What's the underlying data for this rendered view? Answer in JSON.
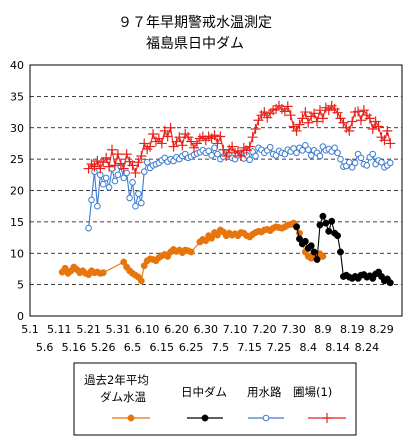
{
  "chart_data": {
    "type": "line",
    "title": "９７年早期警戒水温測定",
    "subtitle": "福島県日中ダム",
    "xlabel": "",
    "ylabel": "",
    "ylim": [
      0,
      40
    ],
    "yticks": [
      "0",
      "5",
      "10",
      "15",
      "20",
      "25",
      "30",
      "35",
      "40"
    ],
    "xlim": [
      "5/1",
      "9/5"
    ],
    "xtick_labels_row1": [
      "5.1",
      "5.11",
      "5.21",
      "5.31",
      "6.10",
      "6.20",
      "6.30",
      "7.10",
      "7.20",
      "7.30",
      "8.9",
      "8.19",
      "8.29"
    ],
    "xtick_labels_row2": [
      "5.6",
      "5.16",
      "5.26",
      "6.5",
      "6.15",
      "6.25",
      "7.5",
      "7.15",
      "7.25",
      "8.4",
      "8.14",
      "8.24"
    ],
    "grid": "horizontal-dashed",
    "legend_position": "bottom",
    "series": [
      {
        "name": "過去2年平均ダム水温",
        "color": "#e8750c",
        "marker": "filled-circle",
        "x": [
          "5/12",
          "5/13",
          "5/14",
          "5/15",
          "5/16",
          "5/17",
          "5/18",
          "5/19",
          "5/20",
          "5/21",
          "5/22",
          "5/23",
          "5/24",
          "5/25",
          "5/26",
          "6/2",
          "6/3",
          "6/4",
          "6/5",
          "6/6",
          "6/7",
          "6/8",
          "6/9",
          "6/10",
          "6/11",
          "6/12",
          "6/13",
          "6/14",
          "6/15",
          "6/16",
          "6/17",
          "6/18",
          "6/19",
          "6/20",
          "6/21",
          "6/22",
          "6/23",
          "6/24",
          "6/25",
          "6/28",
          "6/29",
          "6/30",
          "7/1",
          "7/2",
          "7/3",
          "7/4",
          "7/5",
          "7/6",
          "7/7",
          "7/8",
          "7/9",
          "7/10",
          "7/11",
          "7/12",
          "7/13",
          "7/14",
          "7/15",
          "7/16",
          "7/17",
          "7/18",
          "7/19",
          "7/20",
          "7/21",
          "7/22",
          "7/23",
          "7/24",
          "7/25",
          "7/26",
          "7/27",
          "7/28",
          "7/29",
          "7/30",
          "7/31",
          "8/1",
          "8/2",
          "8/3",
          "8/4",
          "8/5",
          "8/6",
          "8/7",
          "8/8",
          "8/9"
        ],
        "values": [
          7.0,
          7.6,
          6.8,
          7.2,
          7.8,
          7.4,
          6.9,
          7.2,
          6.8,
          6.6,
          7.2,
          6.9,
          7.0,
          6.8,
          6.9,
          8.6,
          7.8,
          7.2,
          6.8,
          6.5,
          6.2,
          5.6,
          8.0,
          8.8,
          9.1,
          9.0,
          8.8,
          9.3,
          9.6,
          9.8,
          9.5,
          10.2,
          10.6,
          10.3,
          10.5,
          10.1,
          10.5,
          10.4,
          10.2,
          11.8,
          12.2,
          12.0,
          12.8,
          12.4,
          13.3,
          12.9,
          13.7,
          13.4,
          12.8,
          13.2,
          12.9,
          13.1,
          12.8,
          13.3,
          13.2,
          12.8,
          12.6,
          13.0,
          13.3,
          13.5,
          13.4,
          13.7,
          13.8,
          13.6,
          14.0,
          14.2,
          14.1,
          14.0,
          14.2,
          14.5,
          14.6,
          14.8,
          14.3,
          13.2,
          11.5,
          10.2,
          9.5,
          9.2,
          9.8,
          9.5,
          9.9,
          9.5
        ]
      },
      {
        "name": "日中ダム",
        "color": "#000000",
        "marker": "filled-circle",
        "x": [
          "7/31",
          "8/1",
          "8/2",
          "8/3",
          "8/4",
          "8/5",
          "8/6",
          "8/7",
          "8/8",
          "8/9",
          "8/10",
          "8/11",
          "8/12",
          "8/13",
          "8/14",
          "8/15",
          "8/16",
          "8/17",
          "8/18",
          "8/19",
          "8/20",
          "8/21",
          "8/22",
          "8/23",
          "8/24",
          "8/25",
          "8/26",
          "8/27",
          "8/28",
          "8/29",
          "8/30",
          "8/31",
          "9/1"
        ],
        "values": [
          14.2,
          12.3,
          11.5,
          11.9,
          10.8,
          11.2,
          10.2,
          9.0,
          14.5,
          15.9,
          14.8,
          13.5,
          15.1,
          13.2,
          12.8,
          10.2,
          6.3,
          6.5,
          6.2,
          6.0,
          6.3,
          6.0,
          6.5,
          6.6,
          6.2,
          6.4,
          6.0,
          6.7,
          7.0,
          6.3,
          5.6,
          5.9,
          5.3
        ]
      },
      {
        "name": "用水路",
        "color": "#3c7cd0",
        "marker": "open-circle",
        "x": [
          "5/21",
          "5/22",
          "5/23",
          "5/24",
          "5/25",
          "5/26",
          "5/27",
          "5/28",
          "5/29",
          "5/30",
          "5/31",
          "6/1",
          "6/2",
          "6/3",
          "6/4",
          "6/5",
          "6/6",
          "6/7",
          "6/8",
          "6/9",
          "6/10",
          "6/11",
          "6/12",
          "6/13",
          "6/14",
          "6/15",
          "6/16",
          "6/17",
          "6/18",
          "6/19",
          "6/20",
          "6/21",
          "6/22",
          "6/23",
          "6/24",
          "6/25",
          "6/26",
          "6/27",
          "6/28",
          "6/29",
          "6/30",
          "7/1",
          "7/2",
          "7/3",
          "7/4",
          "7/5",
          "7/6",
          "7/7",
          "7/8",
          "7/9",
          "7/10",
          "7/11",
          "7/12",
          "7/13",
          "7/14",
          "7/15",
          "7/16",
          "7/17",
          "7/18",
          "7/19",
          "7/20",
          "7/21",
          "7/22",
          "7/23",
          "7/24",
          "7/25",
          "7/26",
          "7/27",
          "7/28",
          "7/29",
          "7/30",
          "7/31",
          "8/1",
          "8/2",
          "8/3",
          "8/4",
          "8/5",
          "8/6",
          "8/7",
          "8/8",
          "8/9",
          "8/10",
          "8/11",
          "8/12",
          "8/13",
          "8/14",
          "8/15",
          "8/16",
          "8/17",
          "8/18",
          "8/19",
          "8/20",
          "8/21",
          "8/22",
          "8/23",
          "8/24",
          "8/25",
          "8/26",
          "8/27",
          "8/28",
          "8/29",
          "8/30",
          "8/31",
          "9/1"
        ],
        "values": [
          14.0,
          18.5,
          23.0,
          17.5,
          22.5,
          21.0,
          22.0,
          20.5,
          23.5,
          21.5,
          22.5,
          23.8,
          22.0,
          22.8,
          18.8,
          21.3,
          17.5,
          19.5,
          18.0,
          23.0,
          24.5,
          23.6,
          24.0,
          24.2,
          24.4,
          24.8,
          25.2,
          24.6,
          25.0,
          24.7,
          25.3,
          25.0,
          25.5,
          25.8,
          25.2,
          25.4,
          25.7,
          25.9,
          26.1,
          26.4,
          26.0,
          26.3,
          25.6,
          26.8,
          25.8,
          25.0,
          25.4,
          26.0,
          25.7,
          25.2,
          25.0,
          25.6,
          26.0,
          25.1,
          25.6,
          24.9,
          26.2,
          25.5,
          26.8,
          26.5,
          26.0,
          26.4,
          26.9,
          25.8,
          25.6,
          26.3,
          26.0,
          25.8,
          26.5,
          26.2,
          26.7,
          26.0,
          26.8,
          26.4,
          27.2,
          26.5,
          25.6,
          26.4,
          26.0,
          25.5,
          27.0,
          26.4,
          26.6,
          26.2,
          26.8,
          26.0,
          25.0,
          23.8,
          23.9,
          24.5,
          23.7,
          24.4,
          25.8,
          25.2,
          24.2,
          24.0,
          25.3,
          25.8,
          24.2,
          24.8,
          24.5,
          23.7,
          24.0,
          24.4
        ]
      },
      {
        "name": "圃場(1)",
        "color": "#e8231c",
        "marker": "plus",
        "x": [
          "5/21",
          "5/22",
          "5/23",
          "5/24",
          "5/25",
          "5/26",
          "5/27",
          "5/28",
          "5/29",
          "5/30",
          "5/31",
          "6/1",
          "6/2",
          "6/3",
          "6/4",
          "6/5",
          "6/6",
          "6/7",
          "6/8",
          "6/9",
          "6/10",
          "6/11",
          "6/12",
          "6/13",
          "6/14",
          "6/15",
          "6/16",
          "6/17",
          "6/18",
          "6/19",
          "6/20",
          "6/21",
          "6/22",
          "6/23",
          "6/24",
          "6/25",
          "6/26",
          "6/27",
          "6/28",
          "6/29",
          "6/30",
          "7/1",
          "7/2",
          "7/3",
          "7/4",
          "7/5",
          "7/6",
          "7/7",
          "7/8",
          "7/9",
          "7/10",
          "7/11",
          "7/12",
          "7/13",
          "7/14",
          "7/15",
          "7/16",
          "7/17",
          "7/18",
          "7/19",
          "7/20",
          "7/21",
          "7/22",
          "7/23",
          "7/24",
          "7/25",
          "7/26",
          "7/27",
          "7/28",
          "7/29",
          "7/30",
          "7/31",
          "8/1",
          "8/2",
          "8/3",
          "8/4",
          "8/5",
          "8/6",
          "8/7",
          "8/8",
          "8/9",
          "8/10",
          "8/11",
          "8/12",
          "8/13",
          "8/14",
          "8/15",
          "8/16",
          "8/17",
          "8/18",
          "8/19",
          "8/20",
          "8/21",
          "8/22",
          "8/23",
          "8/24",
          "8/25",
          "8/26",
          "8/27",
          "8/28",
          "8/29",
          "8/30",
          "8/31",
          "9/1"
        ],
        "values": [
          23.5,
          24.2,
          23.8,
          24.7,
          23.5,
          24.5,
          25.2,
          23.8,
          26.5,
          24.0,
          25.8,
          24.3,
          23.5,
          25.8,
          24.6,
          24.0,
          22.8,
          24.5,
          25.5,
          27.5,
          26.6,
          27.0,
          29.0,
          27.8,
          28.3,
          27.5,
          29.5,
          28.6,
          30.0,
          27.0,
          27.8,
          28.5,
          27.2,
          29.0,
          28.5,
          27.8,
          26.8,
          27.5,
          28.3,
          28.6,
          28.0,
          28.6,
          28.3,
          28.8,
          27.5,
          28.6,
          26.5,
          25.5,
          26.5,
          27.0,
          26.0,
          26.3,
          25.5,
          26.8,
          26.4,
          27.0,
          28.5,
          29.8,
          31.2,
          32.0,
          32.5,
          31.6,
          32.3,
          32.8,
          33.0,
          33.5,
          33.0,
          32.6,
          33.4,
          32.0,
          30.2,
          29.5,
          30.5,
          31.5,
          32.5,
          30.8,
          31.8,
          32.3,
          31.0,
          32.8,
          31.5,
          33.2,
          32.8,
          33.5,
          33.0,
          32.4,
          31.5,
          30.8,
          30.0,
          29.5,
          31.0,
          32.5,
          32.6,
          31.2,
          32.8,
          32.0,
          31.5,
          29.8,
          31.0,
          30.2,
          28.5,
          28.0,
          29.5,
          27.5
        ]
      }
    ]
  },
  "legend": {
    "avg_label_line1": "過去2年平均",
    "avg_label_line2": "ダム水温",
    "dam_label": "日中ダム",
    "canal_label": "用水路",
    "field_label": "圃場(1)"
  }
}
